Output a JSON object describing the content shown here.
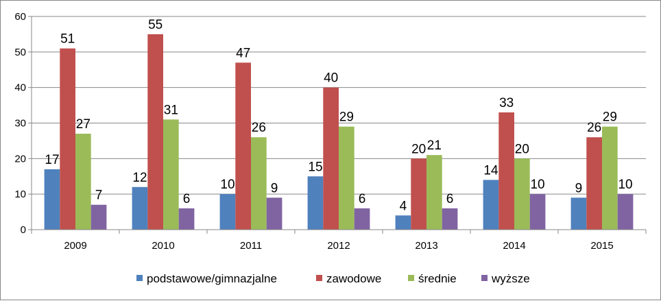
{
  "chart_data": {
    "type": "bar",
    "title": "",
    "xlabel": "",
    "ylabel": "",
    "ylim": [
      0,
      60
    ],
    "yticks": [
      0,
      10,
      20,
      30,
      40,
      50,
      60
    ],
    "grid": true,
    "legend_position": "bottom",
    "categories": [
      "2009",
      "2010",
      "2011",
      "2012",
      "2013",
      "2014",
      "2015"
    ],
    "series": [
      {
        "name": "podstawowe/gimnazjalne",
        "color": "#4F81BD",
        "values": [
          17,
          12,
          10,
          15,
          4,
          14,
          9
        ]
      },
      {
        "name": "zawodowe",
        "color": "#C0504D",
        "values": [
          51,
          55,
          47,
          40,
          20,
          33,
          26
        ]
      },
      {
        "name": "średnie",
        "color": "#9BBB59",
        "values": [
          27,
          31,
          26,
          29,
          21,
          20,
          29
        ]
      },
      {
        "name": "wyższe",
        "color": "#8064A2",
        "values": [
          7,
          6,
          9,
          6,
          6,
          10,
          10
        ]
      }
    ]
  }
}
